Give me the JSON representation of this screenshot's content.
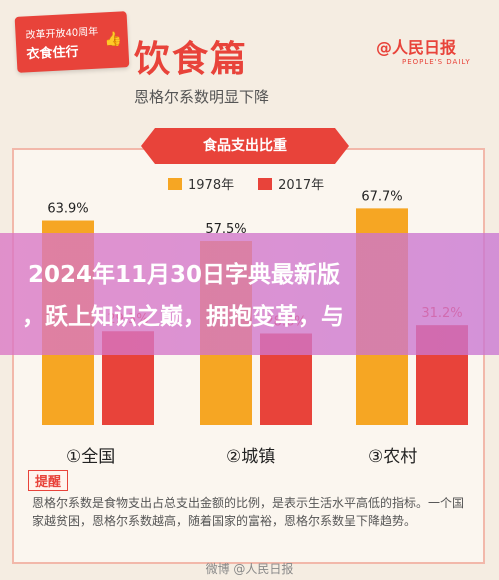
{
  "badge": {
    "line1": "改革开放40周年",
    "line2": "衣食住行",
    "icon": "thumbs-up-icon"
  },
  "title": "饮食篇",
  "subtitle": "恩格尔系数明显下降",
  "logo": {
    "main": "@人民日报",
    "sub": "PEOPLE'S DAILY"
  },
  "ribbon": "食品支出比重",
  "colors": {
    "series1978": "#f6a623",
    "series2017": "#e8433a",
    "accent": "#e8433a"
  },
  "chart_data": {
    "type": "bar",
    "title": "食品支出比重",
    "categories": [
      "①全国",
      "②城镇",
      "③农村"
    ],
    "series": [
      {
        "name": "1978年",
        "values": [
          63.9,
          57.5,
          67.7
        ]
      },
      {
        "name": "2017年",
        "values": [
          29.3,
          28.6,
          31.2
        ]
      }
    ],
    "value_labels": [
      [
        "63.9%",
        "57.5%",
        "67.7%"
      ],
      [
        "29.3%",
        "28.6%",
        "31.2%"
      ]
    ],
    "ylim": [
      0,
      70
    ],
    "legend": "top-center"
  },
  "overlay": {
    "line1": "2024年11月30日字典最新版",
    "line2": "，跃上知识之巅，拥抱变革，与"
  },
  "note": {
    "title": "提醒",
    "text": "恩格尔系数是食物支出占总支出金额的比例，是表示生活水平高低的指标。一个国家越贫困，恩格尔系数越高，随着国家的富裕，恩格尔系数呈下降趋势。"
  },
  "watermark": "微博 @人民日报"
}
